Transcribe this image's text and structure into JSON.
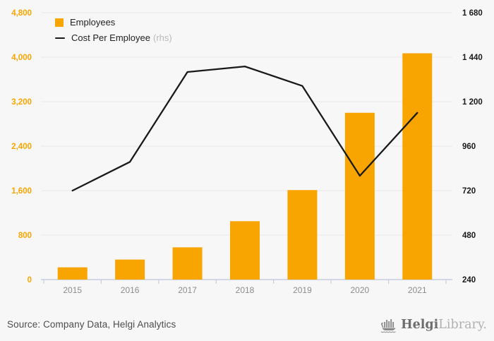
{
  "chart_data": {
    "type": "bar",
    "title": "",
    "categories": [
      "2015",
      "2016",
      "2017",
      "2018",
      "2019",
      "2020",
      "2021"
    ],
    "series": [
      {
        "name": "Employees",
        "type": "bar",
        "axis": "left",
        "values": [
          220,
          360,
          580,
          1050,
          1610,
          3000,
          4070
        ]
      },
      {
        "name": "Cost Per Employee",
        "type": "line",
        "axis": "right",
        "values": [
          720,
          875,
          1360,
          1390,
          1285,
          800,
          1140
        ]
      }
    ],
    "left_axis": {
      "min": 0,
      "max": 4800,
      "step": 800,
      "tick_labels": [
        "0",
        "800",
        "1,600",
        "2,400",
        "3,200",
        "4,000",
        "4,800"
      ]
    },
    "right_axis": {
      "min": 240,
      "max": 1680,
      "step": 240,
      "tick_labels": [
        "240",
        "480",
        "720",
        "960",
        "1 200",
        "1 440",
        "1 680"
      ]
    },
    "legend": [
      {
        "label": "Employees",
        "note": ""
      },
      {
        "label": "Cost Per Employee",
        "note": "(rhs)"
      }
    ],
    "legend_position": "top-left",
    "grid": true,
    "colors": {
      "bar": "#F8A502",
      "line": "#1a1a1a",
      "left_tick_label": "#F8A502",
      "right_tick_label": "#1a1a1a",
      "gridline": "#e9e9e9",
      "axis_line": "#c7cde2",
      "year_label": "#8c8c8c"
    }
  },
  "footer": {
    "source": "Source: Company Data, Helgi Analytics",
    "logo_bold": "Helgi",
    "logo_light": "Library."
  }
}
